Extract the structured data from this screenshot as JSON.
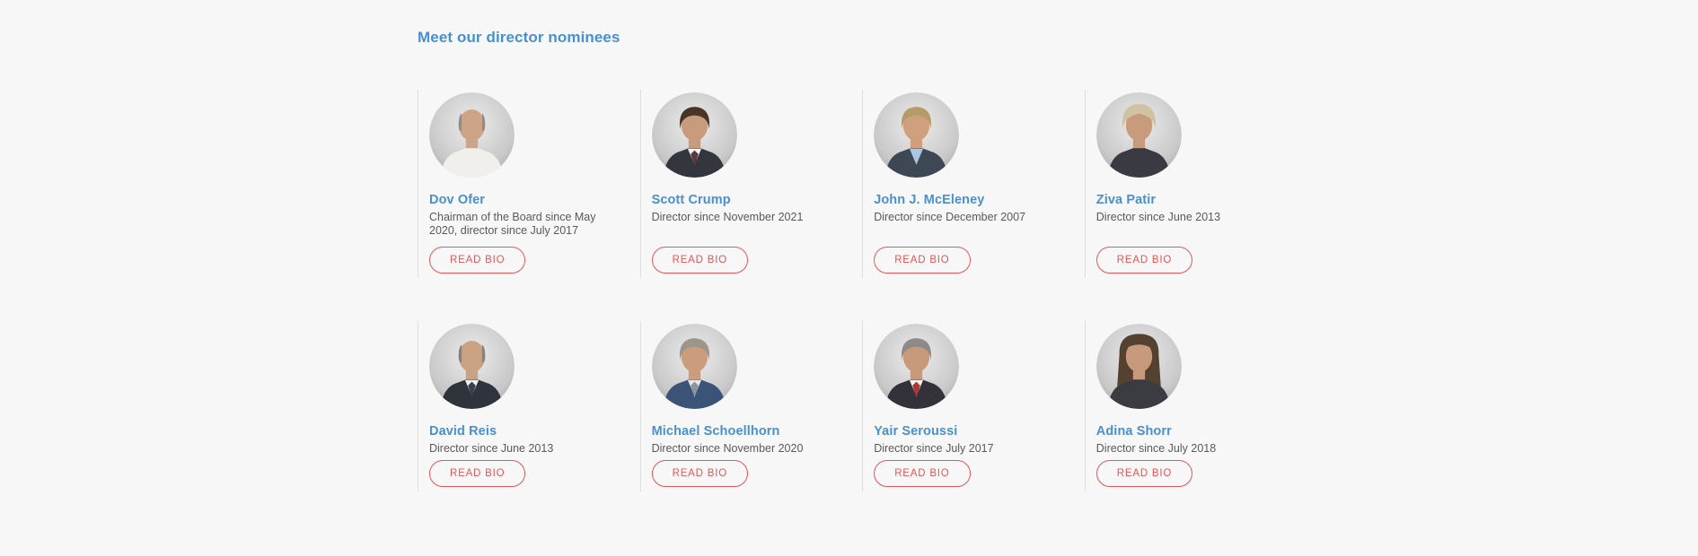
{
  "colors": {
    "background": "#f7f7f7",
    "accent_blue": "#4a90ce",
    "accent_red": "#e25757",
    "divider": "#dfdfdf",
    "text_gray": "#58595b"
  },
  "section": {
    "title": "Meet our director nominees"
  },
  "buttons": {
    "read_bio": "READ BIO"
  },
  "directors": [
    {
      "name": "Dov Ofer",
      "tenure": "Chairman of the Board since May 2020, director since July 2017",
      "photo": {
        "hair_style": "bald",
        "hair": "#8f8e8a",
        "skin": "#cda487",
        "shirt": "#f1efec",
        "jacket": null,
        "tie": null
      }
    },
    {
      "name": "Scott Crump",
      "tenure": "Director since November 2021",
      "photo": {
        "hair_style": "short",
        "hair": "#4a3428",
        "skin": "#c99b7d",
        "shirt": "#f2f2f2",
        "jacket": "#33373d",
        "tie": "#5a3a3a"
      }
    },
    {
      "name": "John J. McEleney",
      "tenure": "Director since December 2007",
      "photo": {
        "hair_style": "short",
        "hair": "#b59a6a",
        "skin": "#cf9f7e",
        "shirt": "#a9c6de",
        "jacket": "#3d4854",
        "tie": null
      }
    },
    {
      "name": "Ziva Patir",
      "tenure": "Director since June 2013",
      "photo": {
        "hair_style": "pixie",
        "hair": "#cfc3a4",
        "skin": "#c89b7d",
        "shirt": "#3a3a42",
        "jacket": null,
        "tie": null
      }
    },
    {
      "name": "David Reis",
      "tenure": "Director since June 2013",
      "photo": {
        "hair_style": "bald",
        "hair": "#84827e",
        "skin": "#c9a183",
        "shirt": "#f0f0f0",
        "jacket": "#2f333b",
        "tie": "#3a3f4a"
      }
    },
    {
      "name": "Michael Schoellhorn",
      "tenure": "Director since November 2020",
      "photo": {
        "hair_style": "short",
        "hair": "#9b958c",
        "skin": "#cb9d7c",
        "shirt": "#e8e6e0",
        "jacket": "#3a5377",
        "tie": "#8a93a0"
      }
    },
    {
      "name": "Yair Seroussi",
      "tenure": "Director since July 2017",
      "photo": {
        "hair_style": "short",
        "hair": "#8d8b87",
        "skin": "#c79a7b",
        "shirt": "#f2f2f2",
        "jacket": "#33323a",
        "tie": "#a93832"
      }
    },
    {
      "name": "Adina Shorr",
      "tenure": "Director since July 2018",
      "photo": {
        "hair_style": "long",
        "hair": "#54412f",
        "skin": "#c79a7d",
        "shirt": "#3b3b42",
        "jacket": null,
        "tie": null
      }
    }
  ]
}
